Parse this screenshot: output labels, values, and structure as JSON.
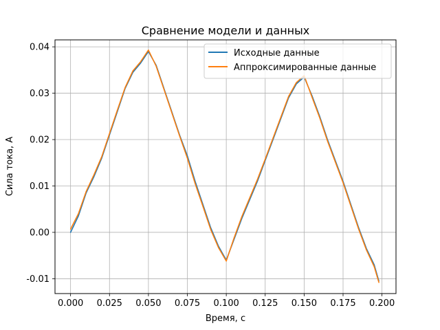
{
  "chart_data": {
    "type": "line",
    "title": "Сравнение модели и данных",
    "xlabel": "Время, с",
    "ylabel": "Сила тока, А",
    "xlim": [
      -0.01,
      0.209
    ],
    "ylim": [
      -0.0132,
      0.0415
    ],
    "x_ticks": [
      0.0,
      0.025,
      0.05,
      0.075,
      0.1,
      0.125,
      0.15,
      0.175,
      0.2
    ],
    "x_tick_labels": [
      "0.000",
      "0.025",
      "0.050",
      "0.075",
      "0.100",
      "0.125",
      "0.150",
      "0.175",
      "0.200"
    ],
    "y_ticks": [
      -0.01,
      0.0,
      0.01,
      0.02,
      0.03,
      0.04
    ],
    "y_tick_labels": [
      "-0.01",
      "0.00",
      "0.01",
      "0.02",
      "0.03",
      "0.04"
    ],
    "grid": true,
    "legend_position": "top-right",
    "x": [
      0.0,
      0.005,
      0.01,
      0.015,
      0.02,
      0.025,
      0.03,
      0.035,
      0.04,
      0.045,
      0.05,
      0.055,
      0.06,
      0.065,
      0.07,
      0.075,
      0.08,
      0.085,
      0.09,
      0.095,
      0.1,
      0.105,
      0.11,
      0.115,
      0.12,
      0.125,
      0.13,
      0.135,
      0.14,
      0.145,
      0.15,
      0.155,
      0.16,
      0.165,
      0.17,
      0.175,
      0.18,
      0.185,
      0.19,
      0.195,
      0.198
    ],
    "series": [
      {
        "name": "Исходные данные",
        "color": "#1f77b4",
        "values": [
          0.0,
          0.0035,
          0.0085,
          0.012,
          0.016,
          0.021,
          0.026,
          0.031,
          0.0345,
          0.0365,
          0.039,
          0.036,
          0.031,
          0.026,
          0.021,
          0.0165,
          0.011,
          0.006,
          0.001,
          -0.003,
          -0.006,
          -0.0015,
          0.003,
          0.007,
          0.011,
          0.0155,
          0.02,
          0.0245,
          0.029,
          0.032,
          0.0335,
          0.0295,
          0.025,
          0.02,
          0.0155,
          0.011,
          0.006,
          0.001,
          -0.0035,
          -0.007,
          -0.0105
        ]
      },
      {
        "name": "Аппроксимированные данные",
        "color": "#ff7f0e",
        "values": [
          0.0007,
          0.004,
          0.0088,
          0.0124,
          0.0163,
          0.0213,
          0.0263,
          0.0312,
          0.0348,
          0.0368,
          0.0393,
          0.0358,
          0.0308,
          0.0258,
          0.0208,
          0.016,
          0.0105,
          0.0056,
          0.0006,
          -0.0033,
          -0.0062,
          -0.0012,
          0.0034,
          0.0074,
          0.0114,
          0.0158,
          0.0203,
          0.0248,
          0.0293,
          0.0323,
          0.0338,
          0.0292,
          0.0247,
          0.0197,
          0.0152,
          0.0107,
          0.0057,
          0.0007,
          -0.0038,
          -0.0074,
          -0.0108
        ]
      }
    ]
  }
}
